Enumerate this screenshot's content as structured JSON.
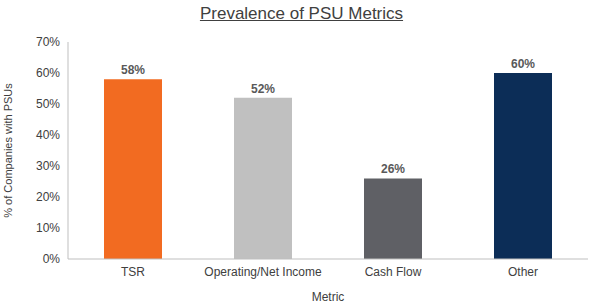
{
  "chart_data": {
    "type": "bar",
    "title": "Prevalence of PSU Metrics",
    "x_label": "Metric",
    "y_label": "% of Companies with PSUs",
    "categories": [
      "TSR",
      "Operating/Net Income",
      "Cash Flow",
      "Other"
    ],
    "values": [
      58,
      52,
      26,
      60
    ],
    "value_labels": [
      "58%",
      "52%",
      "26%",
      "60%"
    ],
    "colors": [
      "#f26b21",
      "#c0c0c0",
      "#5f6065",
      "#0c2d57"
    ],
    "ylim": [
      0,
      70
    ],
    "yticks": [
      {
        "value": 0,
        "label": "0%"
      },
      {
        "value": 10,
        "label": "10%"
      },
      {
        "value": 20,
        "label": "20%"
      },
      {
        "value": 30,
        "label": "30%"
      },
      {
        "value": 40,
        "label": "40%"
      },
      {
        "value": 50,
        "label": "50%"
      },
      {
        "value": 60,
        "label": "60%"
      },
      {
        "value": 70,
        "label": "70%"
      }
    ],
    "grid": false,
    "data_labels": true
  }
}
